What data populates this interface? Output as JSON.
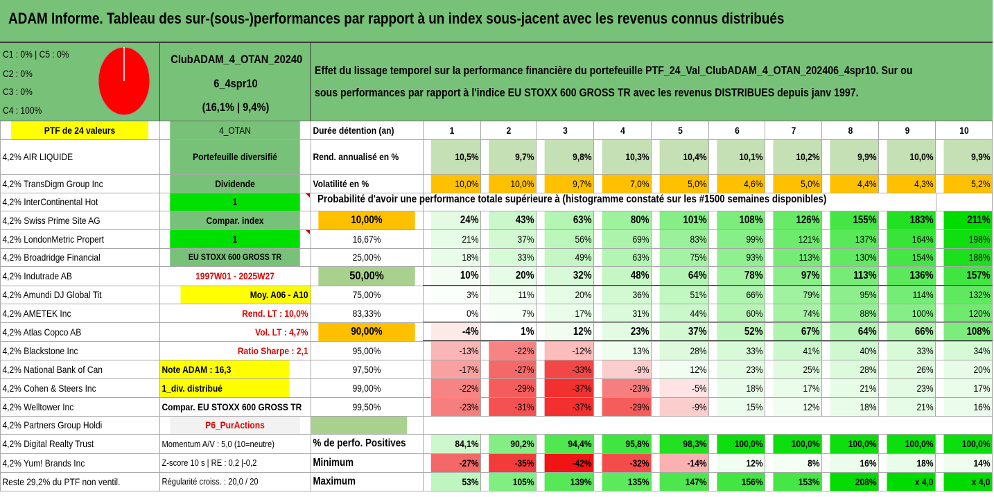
{
  "title": "ADAM Informe. Tableau des sur-(sous-)performances par rapport à un index sous-jacent avec les revenus connus distribués",
  "legend": {
    "line1": "C1 : 0% | C5 : 0%",
    "line2": "C2 : 0%",
    "line3": "C3 : 0%",
    "line4": "C4 : 100%",
    "pie_color": "#ff0000"
  },
  "fund": {
    "line1": "ClubADAM_4_OTAN_20240",
    "line2": "6_4spr10",
    "line3": "(16,1% | 9,4%)"
  },
  "effect": {
    "line1": "Effet du lissage temporel sur la performance financière du portefeuille PTF_24_Val_ClubADAM_4_OTAN_202406_4spr10. Sur ou",
    "line2": "sous performances par rapport à l'indice EU STOXX 600 GROSS TR avec les revenus DISTRIBUES depuis janv 1997."
  },
  "prob_title": "Probabilité d'avoir une performance totale supérieure à (histogramme constaté sur les #1500 semaines disponibles)",
  "holdings": [
    "PTF de 24 valeurs",
    "4,2% AIR LIQUIDE",
    "4,2% TransDigm Group Inc",
    "4,2% InterContinental Hot",
    "4,2% Swiss Prime Site AG",
    "4,2% LondonMetric Propert",
    "4,2% Broadridge Financial",
    "4,2% Indutrade AB",
    "4,2% Amundi DJ Global Tit",
    "4,2% AMETEK Inc",
    "4,2% Atlas Copco AB",
    "4,2% Blackstone Inc",
    "4,2% National Bank of Can",
    "4,2% Cohen & Steers Inc",
    "4,2% Welltower Inc",
    "4,2% Partners Group Holdi",
    "4,2% Digital Realty Trust",
    "4,2% Yum! Brands Inc",
    "Reste 29,2% du PTF non ventil."
  ],
  "info": [
    "4_OTAN",
    "Portefeuille diversifié",
    "Dividende",
    "1",
    "Compar. index",
    "1",
    "EU STOXX 600 GROSS TR",
    "1997W01 - 2025W27",
    "Moy. A06 - A10",
    "Rend. LT : 10,0%",
    "Vol. LT : 4,7%",
    "Ratio Sharpe : 2,1",
    "Note ADAM : 16,3",
    "1_div. distribué",
    "Compar. EU STOXX 600 GROSS TR",
    "P6_PurActions",
    "Momentum A/V : 5,0 (10=neutre)",
    "Z-score 10 s | RE : 0,2 |-0,2",
    "Régularité croiss. : 20,0 / 20"
  ],
  "stats": {
    "holding_label": "Durée détention (an)",
    "years": [
      "1",
      "2",
      "3",
      "4",
      "5",
      "6",
      "7",
      "8",
      "9",
      "10"
    ],
    "rend_label": "Rend. annualisé en %",
    "rend": [
      "10,5%",
      "9,7%",
      "9,8%",
      "10,3%",
      "10,4%",
      "10,1%",
      "10,2%",
      "9,9%",
      "10,0%",
      "9,9%"
    ],
    "vol_label": "Volatilité en %",
    "vol": [
      "10,0%",
      "10,0%",
      "9,7%",
      "7,0%",
      "5,0%",
      "4,6%",
      "5,0%",
      "4,4%",
      "4,3%",
      "5,2%"
    ]
  },
  "prob_rows": [
    {
      "p": "10,00%",
      "values": [
        "24%",
        "43%",
        "63%",
        "80%",
        "101%",
        "108%",
        "126%",
        "155%",
        "183%",
        "211%"
      ]
    },
    {
      "p": "16,67%",
      "values": [
        "21%",
        "37%",
        "56%",
        "69%",
        "83%",
        "99%",
        "121%",
        "137%",
        "164%",
        "198%"
      ]
    },
    {
      "p": "25,00%",
      "values": [
        "18%",
        "33%",
        "49%",
        "63%",
        "75%",
        "93%",
        "113%",
        "130%",
        "154%",
        "188%"
      ]
    },
    {
      "p": "50,00%",
      "values": [
        "10%",
        "20%",
        "32%",
        "48%",
        "64%",
        "78%",
        "97%",
        "113%",
        "136%",
        "157%"
      ]
    },
    {
      "p": "75,00%",
      "values": [
        "3%",
        "11%",
        "20%",
        "36%",
        "51%",
        "66%",
        "79%",
        "95%",
        "114%",
        "132%"
      ]
    },
    {
      "p": "83,33%",
      "values": [
        "0%",
        "7%",
        "17%",
        "31%",
        "44%",
        "60%",
        "74%",
        "88%",
        "100%",
        "120%"
      ]
    },
    {
      "p": "90,00%",
      "values": [
        "-4%",
        "1%",
        "12%",
        "23%",
        "37%",
        "52%",
        "67%",
        "64%",
        "66%",
        "108%"
      ]
    },
    {
      "p": "95,00%",
      "values": [
        "-13%",
        "-22%",
        "-12%",
        "13%",
        "28%",
        "33%",
        "41%",
        "40%",
        "33%",
        "34%"
      ]
    },
    {
      "p": "97,50%",
      "values": [
        "-17%",
        "-27%",
        "-33%",
        "-9%",
        "12%",
        "23%",
        "25%",
        "28%",
        "26%",
        "20%"
      ]
    },
    {
      "p": "99,00%",
      "values": [
        "-22%",
        "-29%",
        "-37%",
        "-23%",
        "-5%",
        "18%",
        "17%",
        "21%",
        "23%",
        "17%"
      ]
    },
    {
      "p": "99,50%",
      "values": [
        "-23%",
        "-31%",
        "-37%",
        "-29%",
        "-9%",
        "15%",
        "12%",
        "18%",
        "21%",
        "16%"
      ]
    }
  ],
  "summary": [
    {
      "label": "% de perfo. Positives",
      "values": [
        "84,1%",
        "90,2%",
        "94,4%",
        "95,8%",
        "98,3%",
        "100,0%",
        "100,0%",
        "100,0%",
        "100,0%",
        "100,0%"
      ]
    },
    {
      "label": "Minimum",
      "values": [
        "-27%",
        "-35%",
        "-42%",
        "-32%",
        "-14%",
        "12%",
        "8%",
        "16%",
        "18%",
        "14%"
      ]
    },
    {
      "label": "Maximum",
      "values": [
        "53%",
        "105%",
        "139%",
        "135%",
        "147%",
        "156%",
        "153%",
        "208%",
        "x 4,0",
        "x 4,0"
      ]
    }
  ]
}
